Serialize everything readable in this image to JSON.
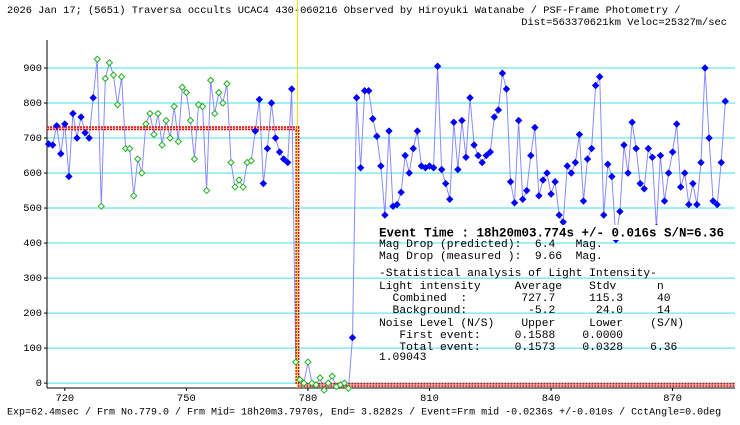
{
  "chart_data": {
    "type": "line",
    "title": "2026 Jan 17; (5651) Traversa occults UCAC4 430-060216 Observed by Hiroyuki Watanabe / PSF-Frame Photometry /",
    "subtitle": "Dist=563370621km Veloc=25327m/sec",
    "footer": "Exp=62.4msec / Frm No.779.0 / Frm Mid= 18h20m3.7970s, End= 3.8282s / Event=Frm mid -0.0236s +/-0.010s / CctAngle=0.0deg",
    "event_title": "Event Time : 18h20m03.774s +/- 0.016s S/N=6.36",
    "annotations": [
      "Mag Drop (predicted):  6.4   Mag.",
      "Mag Drop (measured ):  9.66  Mag.",
      "-Statistical analysis of Light Intensity-",
      "Light intensity     Average    Stdv      n",
      "  Combined  :        727.7     115.3     40",
      "  Background:         -5.2      24.0     14",
      "Noise Level (N/S)    Upper     Lower    (S/N)",
      "   First event:     0.1588    0.0000",
      "   Total event:     0.1573    0.0328    6.36",
      "1.09043"
    ],
    "xlim": [
      715.6,
      885.4
    ],
    "ylim": [
      -14,
      980
    ],
    "xticks": [
      720,
      750,
      780,
      810,
      840,
      870
    ],
    "yticks": [
      0,
      100,
      200,
      300,
      400,
      500,
      600,
      700,
      800,
      900
    ],
    "grid": true,
    "grid_color": "#40e0f0",
    "line_color": "#8a8aff",
    "series": [
      {
        "color": "#0000ff",
        "filled": true,
        "x": [
          716,
          717,
          718,
          719,
          720,
          721,
          722,
          723,
          724,
          725,
          726,
          727
        ],
        "values": [
          683,
          680,
          735,
          655,
          740,
          590,
          770,
          700,
          760,
          715,
          700,
          815
        ]
      },
      {
        "color": "#20b020",
        "filled": false,
        "x": [
          728,
          729,
          730,
          731,
          732,
          733,
          734,
          735,
          736,
          737,
          738,
          739,
          740,
          741,
          742,
          743,
          744,
          745,
          746,
          747,
          748,
          749,
          750,
          751,
          752,
          753,
          754,
          755,
          756,
          757,
          758,
          759,
          760,
          761,
          762,
          763,
          764,
          765,
          766
        ],
        "values": [
          925,
          505,
          870,
          915,
          880,
          795,
          875,
          670,
          670,
          535,
          640,
          600,
          740,
          770,
          710,
          770,
          680,
          750,
          700,
          790,
          690,
          845,
          830,
          750,
          640,
          795,
          790,
          550,
          865,
          770,
          830,
          800,
          855,
          630,
          560,
          580,
          560,
          630,
          635
        ]
      },
      {
        "color": "#0000ff",
        "filled": true,
        "x": [
          767,
          768,
          769,
          770,
          771,
          772,
          773,
          774,
          775,
          776
        ],
        "values": [
          720,
          810,
          570,
          670,
          800,
          700,
          660,
          640,
          630,
          840
        ]
      },
      {
        "color": "#20b020",
        "filled": false,
        "x": [
          777,
          778,
          779,
          780,
          781,
          782,
          783,
          784,
          785,
          786,
          787,
          788,
          789,
          790
        ],
        "values": [
          60,
          10,
          0,
          60,
          0,
          -5,
          15,
          -20,
          0,
          20,
          -10,
          -5,
          0,
          -15
        ]
      },
      {
        "color": "#0000ff",
        "filled": true,
        "x": [
          791,
          792,
          793,
          794,
          795,
          796,
          797,
          798,
          799,
          800,
          801,
          802,
          803,
          804,
          805,
          806,
          807,
          808,
          809,
          810,
          811,
          812,
          813,
          814,
          815,
          816,
          817,
          818,
          819,
          820,
          821,
          822,
          823,
          824,
          825,
          826,
          827,
          828,
          829,
          830,
          831,
          832,
          833,
          834,
          835,
          836,
          837,
          838,
          839,
          840,
          841,
          842,
          843,
          844,
          845,
          846,
          847,
          848,
          849,
          850,
          851,
          852,
          853,
          854,
          855,
          856,
          857,
          858,
          859,
          860,
          861,
          862,
          863,
          864,
          865,
          866,
          867,
          868,
          869,
          870,
          871,
          872,
          873,
          874,
          875,
          876,
          877,
          878,
          879,
          880,
          881,
          882,
          883
        ],
        "values": [
          130,
          815,
          615,
          835,
          835,
          755,
          705,
          620,
          480,
          720,
          505,
          510,
          545,
          650,
          600,
          670,
          720,
          620,
          615,
          620,
          615,
          905,
          610,
          570,
          525,
          745,
          610,
          750,
          645,
          815,
          680,
          650,
          630,
          650,
          660,
          760,
          780,
          885,
          840,
          575,
          515,
          750,
          525,
          550,
          650,
          730,
          535,
          580,
          600,
          540,
          575,
          480,
          460,
          620,
          600,
          630,
          710,
          520,
          640,
          670,
          850,
          875,
          480,
          625,
          590,
          410,
          490,
          680,
          600,
          745,
          670,
          570,
          555,
          670,
          645,
          445,
          650,
          520,
          600,
          660,
          740,
          560,
          600,
          510,
          570,
          510,
          630,
          900,
          700,
          520,
          510,
          630,
          805
        ]
      }
    ],
    "model": {
      "color": "#e00000",
      "x": [
        715.6,
        777.4,
        777.4,
        885.4
      ],
      "values": [
        727.7,
        727.7,
        -5.2,
        -5.2
      ]
    },
    "event_x": 777.4,
    "event_color": "#f0e000"
  }
}
